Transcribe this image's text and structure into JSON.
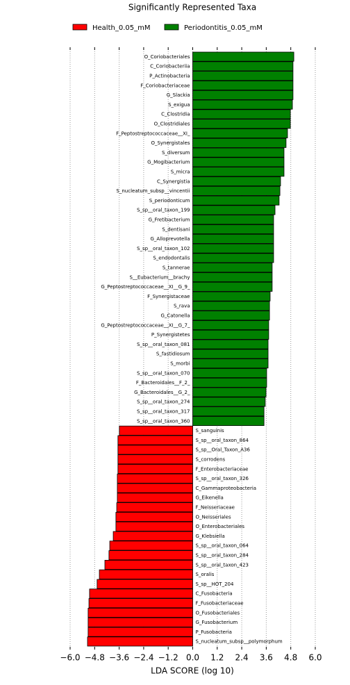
{
  "chart_data": {
    "type": "bar",
    "orientation": "horizontal",
    "title": "Significantly Represented Taxa",
    "xlabel": "LDA SCORE (log 10)",
    "categories": [
      "O_Coriobacteriales",
      "C_Coriobacteriia",
      "P_Actinobacteria",
      "F_Coriobacteriaceae",
      "G_Slackia",
      "S_exigua",
      "C_Clostridia",
      "O_Clostridiales",
      "F_Peptostreptococcaceae__XI_",
      "O_Synergistales",
      "S_diversum",
      "G_Mogibacterium",
      "S_micra",
      "C_Synergistia",
      "S_nucleatum_subsp__vincentii",
      "S_periodonticum",
      "S_sp__oral_taxon_199",
      "G_Fretibacterium",
      "S_dentisani",
      "G_Alloprevotella",
      "S_sp__oral_taxon_102",
      "S_endodontalis",
      "S_tannerae",
      "S__Eubacterium__brachy",
      "G_Peptostreptococcaceae__XI__G_9_",
      "F_Synergistaceae",
      "S_rava",
      "G_Catonella",
      "G_Peptostreptococcaceae__XI__G_7_",
      "P_Synergistetes",
      "S_sp__oral_taxon_081",
      "S_fastidiosum",
      "S_morbi",
      "S_sp__oral_taxon_070",
      "F_Bacteroidales__F_2_",
      "G_Bacteroidales__G_2_",
      "S_sp__oral_taxon_274",
      "S_sp__oral_taxon_317",
      "S_sp__oral_taxon_360",
      "S_sanguinis",
      "S_sp__oral_taxon_864",
      "S_sp__Oral_Taxon_A36",
      "S_corrodens",
      "F_Enterobacteriaceae",
      "S_sp__oral_taxon_326",
      "C_Gammaproteobacteria",
      "G_Eikenella",
      "F_Neisseriaceae",
      "O_Neisseriales",
      "O_Enterobacteriales",
      "G_Klebsiella",
      "S_sp__oral_taxon_064",
      "S_sp__oral_taxon_284",
      "S_sp__oral_taxon_423",
      "S_oralis",
      "S_sp__HOT_204",
      "C_Fusobacteria",
      "F_Fusobacteriaceae",
      "O_Fusobacteriales",
      "G_Fusobacterium",
      "P_Fusobacteria",
      "S_nucleatum_subsp__polymorphum"
    ],
    "series": [
      {
        "name": "Health_0.05_mM",
        "color": "#ff0000",
        "values": [
          null,
          null,
          null,
          null,
          null,
          null,
          null,
          null,
          null,
          null,
          null,
          null,
          null,
          null,
          null,
          null,
          null,
          null,
          null,
          null,
          null,
          null,
          null,
          null,
          null,
          null,
          null,
          null,
          null,
          null,
          null,
          null,
          null,
          null,
          null,
          null,
          null,
          null,
          null,
          -3.59,
          -3.66,
          -3.66,
          -3.66,
          -3.66,
          -3.69,
          -3.69,
          -3.69,
          -3.72,
          -3.76,
          -3.76,
          -3.89,
          -4.06,
          -4.1,
          -4.3,
          -4.57,
          -4.68,
          -5.05,
          -5.08,
          -5.12,
          -5.12,
          -5.12,
          -5.15
        ]
      },
      {
        "name": "Periodontitis_0.05_mM",
        "color": "#008000",
        "values": [
          4.95,
          4.91,
          4.91,
          4.91,
          4.91,
          4.88,
          4.78,
          4.78,
          4.64,
          4.57,
          4.47,
          4.47,
          4.47,
          4.3,
          4.27,
          4.23,
          4.03,
          3.96,
          3.96,
          3.96,
          3.96,
          3.96,
          3.89,
          3.89,
          3.89,
          3.79,
          3.76,
          3.76,
          3.72,
          3.72,
          3.69,
          3.69,
          3.69,
          3.62,
          3.62,
          3.59,
          3.55,
          3.49,
          3.49,
          null,
          null,
          null,
          null,
          null,
          null,
          null,
          null,
          null,
          null,
          null,
          null,
          null,
          null,
          null,
          null,
          null,
          null,
          null,
          null,
          null,
          null,
          null
        ]
      }
    ],
    "xlim": [
      -6.0,
      6.0
    ],
    "xticks": [
      {
        "value": -6.0,
        "label": "−6.0"
      },
      {
        "value": -4.8,
        "label": "−4.8"
      },
      {
        "value": -3.6,
        "label": "−3.6"
      },
      {
        "value": -2.4,
        "label": "−2.4"
      },
      {
        "value": -1.2,
        "label": "−1.2"
      },
      {
        "value": 0,
        "label": "0.0"
      },
      1.2,
      2.4,
      3.6,
      4.8,
      {
        "value": 6.0,
        "label": "6.0"
      }
    ],
    "grid": true,
    "legend": "top"
  }
}
